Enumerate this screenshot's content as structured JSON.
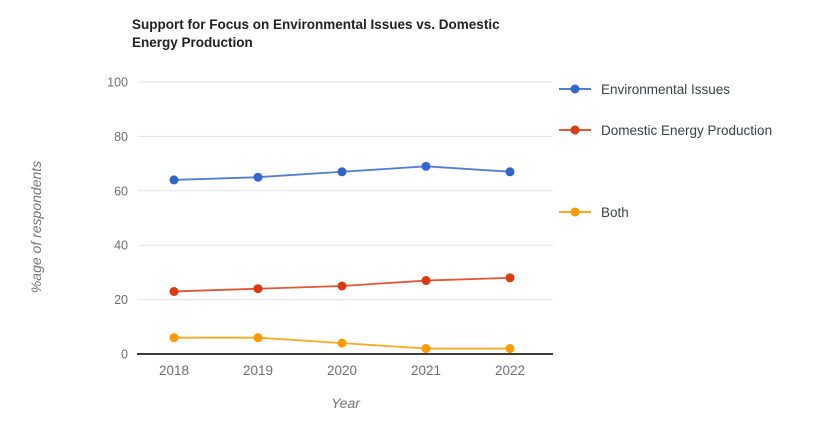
{
  "chart_data": {
    "type": "line",
    "title": "Support for Focus on Environmental Issues vs. Domestic Energy Production",
    "xlabel": "Year",
    "ylabel": "%age of respondents",
    "categories": [
      "2018",
      "2019",
      "2020",
      "2021",
      "2022"
    ],
    "series": [
      {
        "name": "Environmental Issues",
        "color": "#3366cc",
        "values": [
          64,
          65,
          67,
          69,
          67
        ]
      },
      {
        "name": "Domestic Energy Production",
        "color": "#dc3912",
        "values": [
          23,
          24,
          25,
          27,
          28
        ]
      },
      {
        "name": "Both",
        "color": "#ff9900",
        "values": [
          6,
          6,
          4,
          2,
          2
        ]
      }
    ],
    "ylim": [
      0,
      100
    ],
    "yticks": [
      0,
      20,
      40,
      60,
      80,
      100
    ],
    "grid": true,
    "legend_position": "right",
    "colors": {
      "grid": "#e2e2e2",
      "axis": "#3d3d3d",
      "tick_text": "#6e6e6e",
      "title_text": "#212121",
      "legend_text": "#3c4043"
    }
  }
}
